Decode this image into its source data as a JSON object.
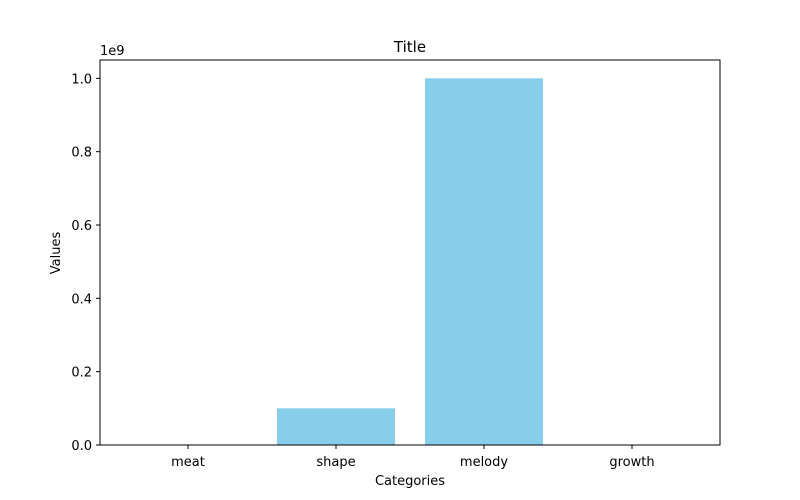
{
  "chart_data": {
    "type": "bar",
    "title": "Title",
    "xlabel": "Categories",
    "ylabel": "Values",
    "categories": [
      "meat",
      "shape",
      "melody",
      "growth"
    ],
    "values": [
      10,
      100000000,
      1000000000,
      1000
    ],
    "y_offset_label": "1e9",
    "y_scale": 1000000000,
    "ylim": [
      0,
      1050000000
    ],
    "y_ticks": [
      0,
      200000000,
      400000000,
      600000000,
      800000000,
      1000000000
    ],
    "y_tick_labels": [
      "0.0",
      "0.2",
      "0.4",
      "0.6",
      "0.8",
      "1.0"
    ],
    "bar_color": "#87ceeb",
    "grid": false,
    "legend": "none"
  }
}
